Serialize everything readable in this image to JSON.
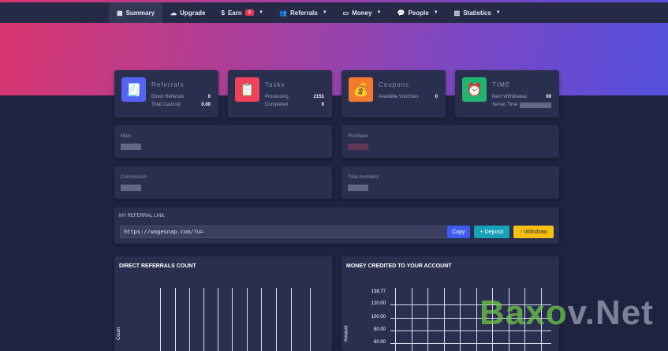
{
  "nav": {
    "items": [
      {
        "label": "Summary",
        "icon": "grid-icon"
      },
      {
        "label": "Upgrade",
        "icon": "cloud-upload-icon"
      },
      {
        "label": "Earn",
        "icon": "dollar-icon",
        "badge": "2"
      },
      {
        "label": "Referrals",
        "icon": "users-icon"
      },
      {
        "label": "Money",
        "icon": "money-icon"
      },
      {
        "label": "People",
        "icon": "chat-icon"
      },
      {
        "label": "Statistics",
        "icon": "bar-chart-icon"
      }
    ]
  },
  "stats": {
    "referrals": {
      "title": "Referrals",
      "rows": [
        {
          "label": "Direct Referrals",
          "value": "0"
        },
        {
          "label": "Total Cashout",
          "value": "0.00"
        }
      ],
      "color": "#5563f0"
    },
    "tasks": {
      "title": "Tasks",
      "rows": [
        {
          "label": "Processing",
          "value": "2151"
        },
        {
          "label": "Completed",
          "value": "0"
        }
      ],
      "color": "#f0415a"
    },
    "coupons": {
      "title": "Coupons",
      "rows": [
        {
          "label": "Available Vouchers",
          "value": "0"
        }
      ],
      "color": "#f47a2e"
    },
    "time": {
      "title": "TIME",
      "rows": [
        {
          "label": "Next Withdrawal",
          "value": "00"
        },
        {
          "label": "Server Time",
          "value": ""
        }
      ],
      "color": "#22b36e"
    }
  },
  "balances": {
    "main": "Main",
    "purchase": "Purchase",
    "commission": "Commission",
    "total_members": "Total members"
  },
  "referral": {
    "label": "MY REFERRAL LINK:",
    "link": "https://wagesnap.com/?u=",
    "copy": "Copy",
    "deposit": "+ Deposit",
    "withdraw": "↑ Withdraw"
  },
  "charts": {
    "left": {
      "title": "DIRECT REFERRALS COUNT",
      "ylabel": "Count"
    },
    "right": {
      "title": "MONEY CREDITED TO YOUR ACCOUNT",
      "ylabel": "Amount",
      "yticks": [
        "138.77",
        "120.00",
        "100.00",
        "80.00",
        "60.00"
      ]
    }
  },
  "chart_data": [
    {
      "type": "bar",
      "title": "DIRECT REFERRALS COUNT",
      "ylabel": "Count",
      "values": []
    },
    {
      "type": "line",
      "title": "MONEY CREDITED TO YOUR ACCOUNT",
      "ylabel": "Amount",
      "ylim": [
        60,
        138.77
      ],
      "yticks": [
        138.77,
        120,
        100,
        80,
        60
      ],
      "values": []
    }
  ],
  "watermark": "Baxov.Net"
}
